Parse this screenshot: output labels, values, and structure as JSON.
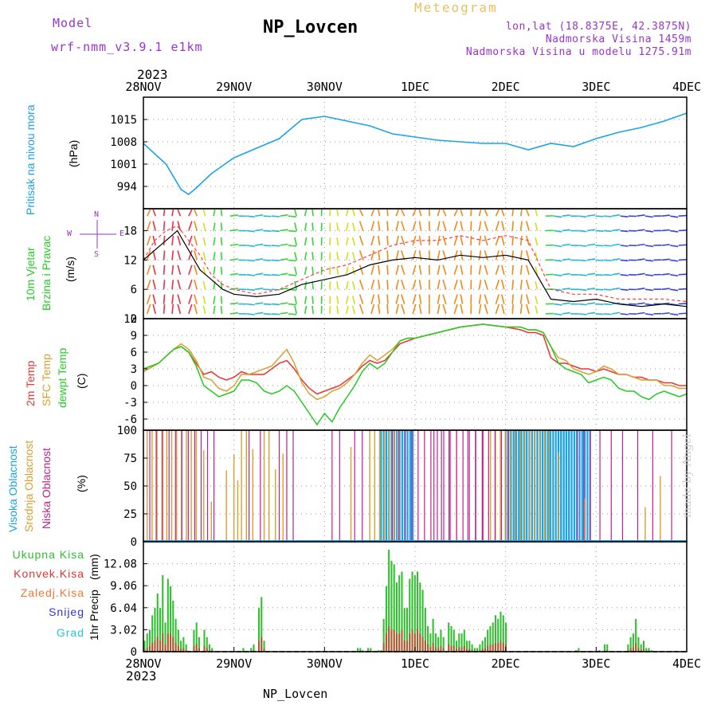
{
  "header": {
    "title": "NP_Lovcen",
    "model_label": "Model",
    "model_name": "wrf-nmm_v3.9.1 e1km",
    "product": "Meteogram",
    "lonlat": "lon,lat (18.8375E, 42.3875N)",
    "elevation": "Nadmorska Visina 1459m",
    "model_elevation": "Nadmorska Visina u modelu 1275.91m",
    "footer": "NP_Lovcen",
    "watermark": "made by Angel"
  },
  "colors": {
    "pressure": "#1aa3e8",
    "wind_speed": "#000000",
    "gust": "#ff4040",
    "temp2m": "#ee3333",
    "sfc_temp": "#d9a030",
    "dewpt": "#22cc22",
    "high_cloud": "#1aa3e8",
    "mid_cloud": "#d9a030",
    "low_cloud": "#c0208a",
    "total_precip": "#2fbf2f",
    "conv_precip": "#dd3333",
    "freezing": "#ee7733",
    "snow": "#3333dd",
    "hail": "#22cccc",
    "purple_text": "#9933cc",
    "yellow_text": "#e8c060"
  },
  "chart_data": [
    {
      "type": "line",
      "name": "pressure",
      "ylabel": "Pritisak na nivou mora",
      "unit": "(hPa)",
      "year": "2023",
      "x_ticks": [
        "28NOV",
        "29NOV",
        "30NOV",
        "1DEC",
        "2DEC",
        "3DEC",
        "4DEC"
      ],
      "ylim": [
        987,
        1022
      ],
      "y_ticks": [
        994,
        1001,
        1008,
        1015
      ],
      "grid": true,
      "x": [
        0,
        6,
        10,
        12,
        14,
        18,
        24,
        30,
        36,
        42,
        48,
        54,
        60,
        66,
        72,
        78,
        84,
        90,
        96,
        102,
        108,
        114,
        120,
        126,
        132,
        138,
        144
      ],
      "values": [
        1007.5,
        1001,
        993,
        991.5,
        993.5,
        998,
        1003,
        1006,
        1009,
        1015,
        1016,
        1014.5,
        1013,
        1010.5,
        1009.5,
        1008.5,
        1008,
        1007.5,
        1007.5,
        1005.5,
        1007.5,
        1006.5,
        1009,
        1011,
        1012.5,
        1014.5,
        1017
      ]
    },
    {
      "type": "line",
      "name": "wind",
      "ylabel_lines": [
        "10m Vjetar",
        "Brzina i Pravac"
      ],
      "unit": "(m/s)",
      "compass_labels": [
        "N",
        "S",
        "W",
        "E"
      ],
      "ylim": [
        0,
        22.5
      ],
      "y_ticks": [
        0,
        6,
        12,
        18
      ],
      "grid": true,
      "x": [
        0,
        3,
        6,
        9,
        12,
        15,
        18,
        21,
        24,
        30,
        36,
        42,
        48,
        54,
        60,
        66,
        72,
        78,
        84,
        90,
        96,
        102,
        108,
        114,
        120,
        126,
        132,
        138,
        144
      ],
      "speed": [
        12,
        14,
        16,
        18,
        14,
        10,
        8,
        6,
        5,
        4.5,
        5,
        7,
        8,
        9,
        11,
        12,
        12.5,
        12,
        13,
        12.5,
        13,
        12,
        4,
        3.5,
        4,
        3,
        2.5,
        3,
        2.5
      ],
      "gust": [
        12,
        16,
        18,
        19,
        16,
        13,
        9,
        7,
        6,
        5,
        6,
        8,
        10,
        11,
        13,
        15,
        16,
        16,
        17,
        16,
        17,
        16,
        6,
        5,
        5,
        4,
        4,
        4,
        3.5
      ],
      "barb_rows": [
        1,
        3,
        6,
        9,
        12,
        15,
        18,
        21
      ]
    },
    {
      "type": "line",
      "name": "temperature",
      "ylabel_lines": [
        "2m Temp",
        "SFC Temp",
        "dewpt Temp"
      ],
      "unit": "(C)",
      "ylim": [
        -8,
        12
      ],
      "y_ticks": [
        -6,
        -3,
        0,
        3,
        6,
        9,
        12
      ],
      "grid": true,
      "x": [
        0,
        4,
        8,
        10,
        12,
        14,
        16,
        18,
        20,
        22,
        24,
        26,
        28,
        30,
        32,
        34,
        36,
        38,
        40,
        42,
        44,
        46,
        48,
        50,
        52,
        54,
        56,
        58,
        60,
        62,
        64,
        66,
        68,
        70,
        72,
        78,
        84,
        90,
        96,
        100,
        102,
        104,
        106,
        108,
        110,
        112,
        114,
        116,
        118,
        120,
        122,
        124,
        126,
        128,
        130,
        132,
        134,
        136,
        138,
        140,
        142,
        144
      ],
      "temp2m": [
        2.5,
        4,
        6.5,
        7,
        6,
        4,
        2,
        2.5,
        1.5,
        1,
        1.5,
        2.5,
        2,
        2,
        2,
        3,
        4,
        4.5,
        3,
        1,
        -0.5,
        -1.5,
        -1,
        -0.5,
        0,
        1,
        2,
        3.5,
        4.5,
        4,
        4.5,
        6,
        7.5,
        8,
        8.5,
        9.5,
        10.5,
        11,
        10.5,
        10,
        9.5,
        9.5,
        9,
        5,
        4,
        4,
        3.5,
        3,
        3,
        2.5,
        3,
        2.5,
        2,
        2,
        1.5,
        1.5,
        1,
        1,
        0.5,
        0.5,
        0,
        0
      ],
      "sfc_temp": [
        2.5,
        4,
        6.5,
        7.5,
        6.5,
        4.5,
        1.5,
        1,
        -0.5,
        -1,
        0,
        2,
        2,
        2.5,
        3,
        3.5,
        5,
        6.5,
        4,
        0.5,
        -1.5,
        -2.5,
        -2,
        -1,
        -0.5,
        0.5,
        2,
        4,
        5.5,
        4.5,
        5.5,
        6.5,
        8,
        8.5,
        8.5,
        9.5,
        10.5,
        11,
        10.5,
        10.5,
        10,
        10,
        9.5,
        7,
        5,
        4.5,
        3,
        2.5,
        2,
        2.5,
        3.5,
        3,
        2,
        2,
        1.5,
        1,
        1,
        1,
        0,
        0,
        -0.5,
        -0.5
      ],
      "dewpt": [
        3,
        4,
        6.5,
        7,
        6,
        3.5,
        0,
        -1,
        -2,
        -1.5,
        -1,
        1,
        1,
        0.5,
        -1,
        -1.5,
        -1,
        0,
        -1,
        -3,
        -5,
        -7,
        -5,
        -6.5,
        -4,
        -2,
        0,
        2.5,
        4,
        3,
        4,
        6,
        8,
        8.5,
        8.5,
        9.5,
        10.5,
        11,
        10.5,
        10.5,
        10,
        10,
        9.5,
        7,
        4,
        3,
        2.5,
        2,
        0.5,
        1,
        1.5,
        1,
        -0.5,
        -1,
        -1,
        -2,
        -2.5,
        -1.5,
        -1,
        -1.5,
        -2,
        -1.5
      ]
    },
    {
      "type": "bar",
      "name": "clouds",
      "ylabel_lines": [
        "Visoka Oblacnost",
        "Srednja Oblacnost",
        "Niska Oblacnost"
      ],
      "unit": "(%)",
      "ylim": [
        0,
        100
      ],
      "y_ticks": [
        0,
        25,
        50,
        75,
        100
      ],
      "grid": true,
      "high_ranges": [
        [
          63,
          72
        ],
        [
          96,
          113
        ],
        [
          110,
          119
        ]
      ],
      "mid_ranges": [
        [
          1,
          15
        ],
        [
          26,
          28
        ],
        [
          32,
          34
        ],
        [
          60,
          68
        ],
        [
          92,
          108
        ]
      ],
      "low_ranges": [
        [
          0,
          20
        ],
        [
          38,
          40
        ],
        [
          66,
          98
        ],
        [
          115,
          120
        ]
      ],
      "low_spikes": [
        28,
        31,
        36,
        50,
        52,
        56,
        58,
        77,
        79,
        81,
        83,
        86,
        88,
        90,
        121,
        124,
        127,
        131,
        135,
        140
      ],
      "mid_spikes": [
        16,
        18,
        22,
        24,
        25,
        29,
        35,
        37,
        55,
        110,
        117,
        133,
        137
      ]
    },
    {
      "type": "bar",
      "name": "precip",
      "legend": [
        "Ukupna Kisa",
        "Konvek.Kisa",
        "Zaledj.Kisa",
        "Snijeg",
        "Grad"
      ],
      "ylabel": "1hr Precip",
      "unit": "(mm)",
      "ylim": [
        0,
        15.1
      ],
      "y_ticks": [
        0,
        3.02,
        6.04,
        9.06,
        12.08
      ],
      "grid": true,
      "total": [
        1.5,
        2.5,
        3,
        5,
        6,
        8,
        6,
        10.5,
        4,
        10,
        9,
        7,
        4.5,
        3,
        1.5,
        2,
        1,
        0,
        0,
        3,
        4,
        2,
        0,
        3,
        2,
        1,
        0.5,
        0,
        0,
        0,
        0,
        0,
        0,
        0,
        0,
        0,
        0,
        0,
        0.5,
        0,
        0,
        0.5,
        1,
        0,
        6,
        7.5,
        1.5,
        0,
        0,
        0,
        0,
        0,
        0,
        0,
        0,
        0,
        0,
        0,
        0,
        0,
        0,
        0,
        0,
        0,
        0,
        0,
        0,
        0,
        0,
        0,
        0,
        0,
        0,
        0,
        0,
        0,
        0,
        0,
        0,
        0,
        0,
        0,
        0.5,
        0.5,
        0.2,
        0,
        0.5,
        0.5,
        0,
        0,
        0.2,
        0.2,
        4.5,
        9,
        14,
        12.5,
        12,
        9.5,
        10.5,
        11,
        6,
        6,
        10,
        11,
        10.5,
        11,
        9.5,
        8.5,
        6,
        3.5,
        2.5,
        4.5,
        2.5,
        2,
        3,
        2,
        0,
        4,
        3.5,
        3,
        1.5,
        2.5,
        2.5,
        3,
        1.5,
        1.5,
        1,
        0.5,
        0.5,
        1,
        1.5,
        2,
        3,
        3.5,
        4,
        5,
        4.5,
        5.5,
        5,
        4,
        0,
        0,
        0,
        0,
        0,
        0,
        0,
        0,
        0,
        0,
        0,
        0,
        0,
        0,
        0,
        0,
        0,
        0,
        0,
        0,
        0,
        0,
        0,
        0,
        0,
        0,
        0.2,
        0.5,
        0,
        0,
        0,
        0,
        0,
        0,
        0,
        0.2,
        0,
        1,
        1,
        0,
        0,
        0,
        0,
        0,
        0,
        0,
        1,
        2,
        2.5,
        4.5,
        2,
        1,
        1.5,
        0.5,
        0.5,
        0.2,
        0,
        0,
        0,
        0,
        0,
        0,
        0,
        0,
        0,
        0,
        0,
        0,
        0
      ],
      "convective": [
        0.3,
        0.5,
        0.8,
        1.2,
        1.5,
        2.0,
        1.5,
        2.5,
        1.0,
        2.5,
        2.5,
        2.0,
        1.2,
        0.8,
        0.4,
        0.5,
        0.2,
        0,
        0,
        0.8,
        1.0,
        0.5,
        0,
        0.8,
        0.5,
        0.2,
        0.1,
        0,
        0,
        0,
        0,
        0,
        0,
        0,
        0,
        0,
        0,
        0,
        0.1,
        0,
        0,
        0.1,
        0.2,
        0,
        1.5,
        2.0,
        0.4,
        0,
        0,
        0,
        0,
        0,
        0,
        0,
        0,
        0,
        0,
        0,
        0,
        0,
        0,
        0,
        0,
        0,
        0,
        0,
        0,
        0,
        0,
        0,
        0,
        0,
        0,
        0,
        0,
        0,
        0,
        0,
        0,
        0,
        0,
        0,
        0.1,
        0.1,
        0,
        0,
        0.1,
        0.1,
        0,
        0,
        0,
        0,
        1.2,
        2.5,
        3.5,
        3.0,
        3.0,
        2.5,
        2.5,
        3.0,
        1.5,
        1.5,
        2.5,
        3.0,
        2.5,
        3.0,
        2.5,
        2.0,
        1.5,
        1.0,
        0.6,
        1.2,
        0.6,
        0.5,
        0.8,
        0.5,
        0,
        1.0,
        0.8,
        0.8,
        0.4,
        0.6,
        0.6,
        0.8,
        0.4,
        0.4,
        0.2,
        0.1,
        0.1,
        0.2,
        0.4,
        0.5,
        0.8,
        1.0,
        1.0,
        1.2,
        1.2,
        1.5,
        1.2,
        1.0,
        0,
        0,
        0,
        0,
        0,
        0,
        0,
        0,
        0,
        0,
        0,
        0,
        0,
        0,
        0,
        0,
        0,
        0,
        0,
        0,
        0,
        0,
        0,
        0,
        0,
        0,
        0,
        0.1,
        0,
        0,
        0,
        0,
        0,
        0,
        0,
        0,
        0,
        0.2,
        0.2,
        0,
        0,
        0,
        0,
        0,
        0,
        0,
        0.2,
        0.5,
        0.6,
        1.2,
        0.5,
        0.2,
        0.4,
        0.1,
        0.1,
        0,
        0,
        0,
        0,
        0,
        0,
        0,
        0,
        0,
        0,
        0,
        0,
        0,
        0
      ]
    }
  ]
}
